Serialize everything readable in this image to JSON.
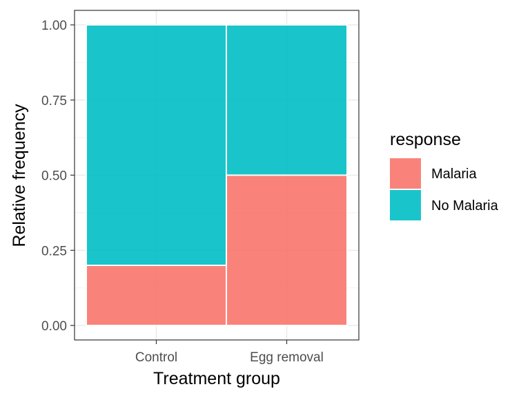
{
  "chart_data": {
    "type": "bar",
    "stacked": true,
    "mosaic": true,
    "categories": [
      "Control",
      "Egg removal"
    ],
    "category_widths": [
      0.537,
      0.463
    ],
    "series": [
      {
        "name": "Malaria",
        "values": [
          0.2,
          0.5
        ],
        "color": "#F8766D"
      },
      {
        "name": "No Malaria",
        "values": [
          0.8,
          0.5
        ],
        "color": "#00BFC4"
      }
    ],
    "xlabel": "Treatment group",
    "ylabel": "Relative frequency",
    "ylim": [
      0,
      1
    ],
    "yticks": [
      0,
      0.25,
      0.5,
      0.75,
      1
    ],
    "ytick_labels": [
      "0.00",
      "0.25",
      "0.50",
      "0.75",
      "1.00"
    ],
    "legend": {
      "title": "response",
      "position": "right"
    },
    "grid": true,
    "theme": "bw"
  }
}
